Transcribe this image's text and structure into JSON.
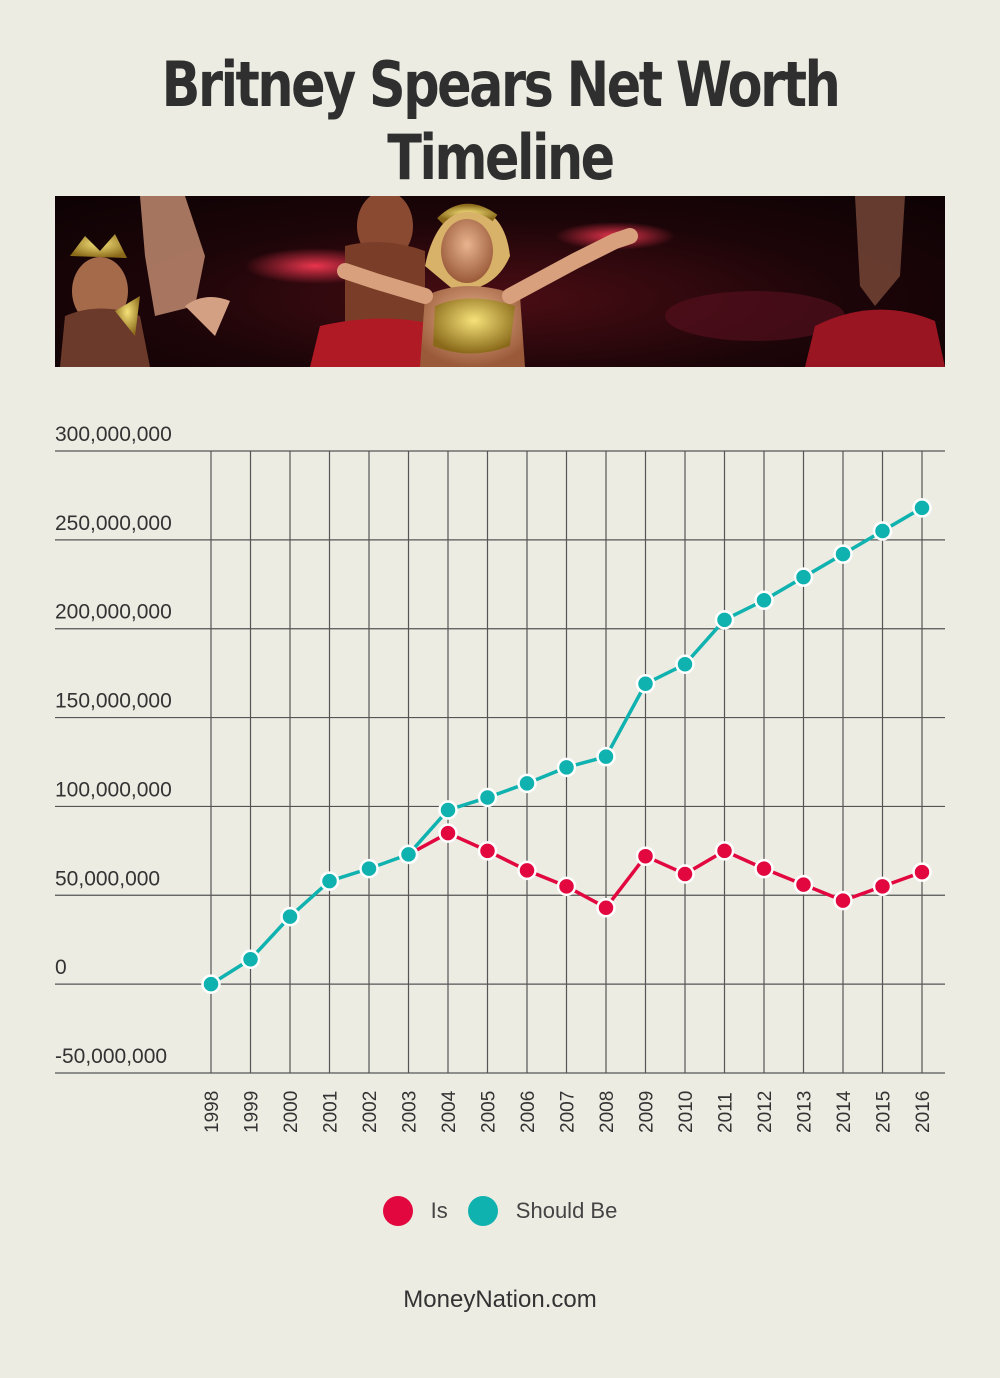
{
  "title": "Britney Spears Net Worth Timeline",
  "footer": "MoneyNation.com",
  "colors": {
    "is": "#e2083f",
    "should_be": "#10b2b0",
    "grid": "#555555",
    "background": "#ecece3"
  },
  "chart_data": {
    "type": "line",
    "x": [
      "1998",
      "1999",
      "2000",
      "2001",
      "2002",
      "2003",
      "2004",
      "2005",
      "2006",
      "2007",
      "2008",
      "2009",
      "2010",
      "2011",
      "2012",
      "2013",
      "2014",
      "2015",
      "2016"
    ],
    "series": [
      {
        "name": "Is",
        "color": "#e2083f",
        "values": [
          null,
          null,
          null,
          null,
          null,
          73000000,
          85000000,
          75000000,
          64000000,
          55000000,
          43000000,
          72000000,
          62000000,
          75000000,
          65000000,
          56000000,
          47000000,
          55000000,
          63000000
        ]
      },
      {
        "name": "Should Be",
        "color": "#10b2b0",
        "values": [
          0,
          14000000,
          38000000,
          58000000,
          65000000,
          73000000,
          98000000,
          105000000,
          113000000,
          122000000,
          128000000,
          169000000,
          180000000,
          205000000,
          216000000,
          229000000,
          242000000,
          255000000,
          268000000
        ]
      }
    ],
    "y_ticks": [
      "300,000,000",
      "250,000,000",
      "200,000,000",
      "150,000,000",
      "100,000,000",
      "50,000,000",
      "0",
      "-50,000,000"
    ],
    "ylim": [
      -50000000,
      300000000
    ],
    "grid": true,
    "legend_position": "bottom-center"
  }
}
